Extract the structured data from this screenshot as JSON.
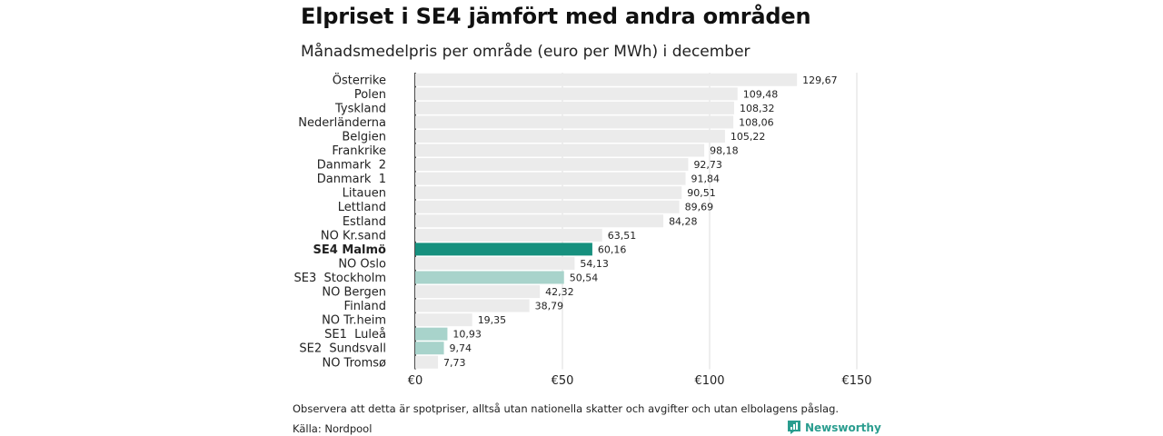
{
  "header": {
    "title": "Elpriset i SE4 jämfört med andra områden",
    "subtitle": "Månadsmedelpris per område (euro per MWh) i december"
  },
  "footer": {
    "note": "Observera att detta är spotpriser, alltså utan nationella skatter och avgifter och utan elbolagens påslag.",
    "source": "Källa: Nordpool",
    "brand": "Newsworthy"
  },
  "colors": {
    "default_bar": "#ebebeb",
    "highlight": "#16907e",
    "light_highlight": "#a8d3cb",
    "brand": "#2a9d8f"
  },
  "chart_data": {
    "type": "bar",
    "orientation": "horizontal",
    "title": "Elpriset i SE4 jämfört med andra områden",
    "subtitle": "Månadsmedelpris per område (euro per MWh) i december",
    "categories": [
      "Österrike",
      "Polen",
      "Tyskland",
      "Nederländerna",
      "Belgien",
      "Frankrike",
      "Danmark  2",
      "Danmark  1",
      "Litauen",
      "Lettland",
      "Estland",
      "NO Kr.sand",
      "SE4 Malmö",
      "NO Oslo",
      "SE3  Stockholm",
      "NO Bergen",
      "Finland",
      "NO Tr.heim",
      "SE1  Luleå",
      "SE2  Sundsvall",
      "NO Tromsø"
    ],
    "values": [
      129.67,
      109.48,
      108.32,
      108.06,
      105.22,
      98.18,
      92.73,
      91.84,
      90.51,
      89.69,
      84.28,
      63.51,
      60.16,
      54.13,
      50.54,
      42.32,
      38.79,
      19.35,
      10.93,
      9.74,
      7.73
    ],
    "value_labels": [
      "129,67",
      "109,48",
      "108,32",
      "108,06",
      "105,22",
      "98,18",
      "92,73",
      "91,84",
      "90,51",
      "89,69",
      "84,28",
      "63,51",
      "60,16",
      "54,13",
      "50,54",
      "42,32",
      "38,79",
      "19,35",
      "10,93",
      "9,74",
      "7,73"
    ],
    "highlight": [
      "default",
      "default",
      "default",
      "default",
      "default",
      "default",
      "default",
      "default",
      "default",
      "default",
      "default",
      "default",
      "highlight",
      "default",
      "light_highlight",
      "default",
      "default",
      "default",
      "light_highlight",
      "light_highlight",
      "default"
    ],
    "bold": [
      false,
      false,
      false,
      false,
      false,
      false,
      false,
      false,
      false,
      false,
      false,
      false,
      true,
      false,
      false,
      false,
      false,
      false,
      false,
      false,
      false
    ],
    "xlim": [
      0,
      150
    ],
    "ticks": [
      0,
      50,
      100,
      150
    ],
    "tick_labels": [
      "€0",
      "€50",
      "€100",
      "€150"
    ],
    "grid": true,
    "xlabel": "",
    "ylabel": ""
  }
}
